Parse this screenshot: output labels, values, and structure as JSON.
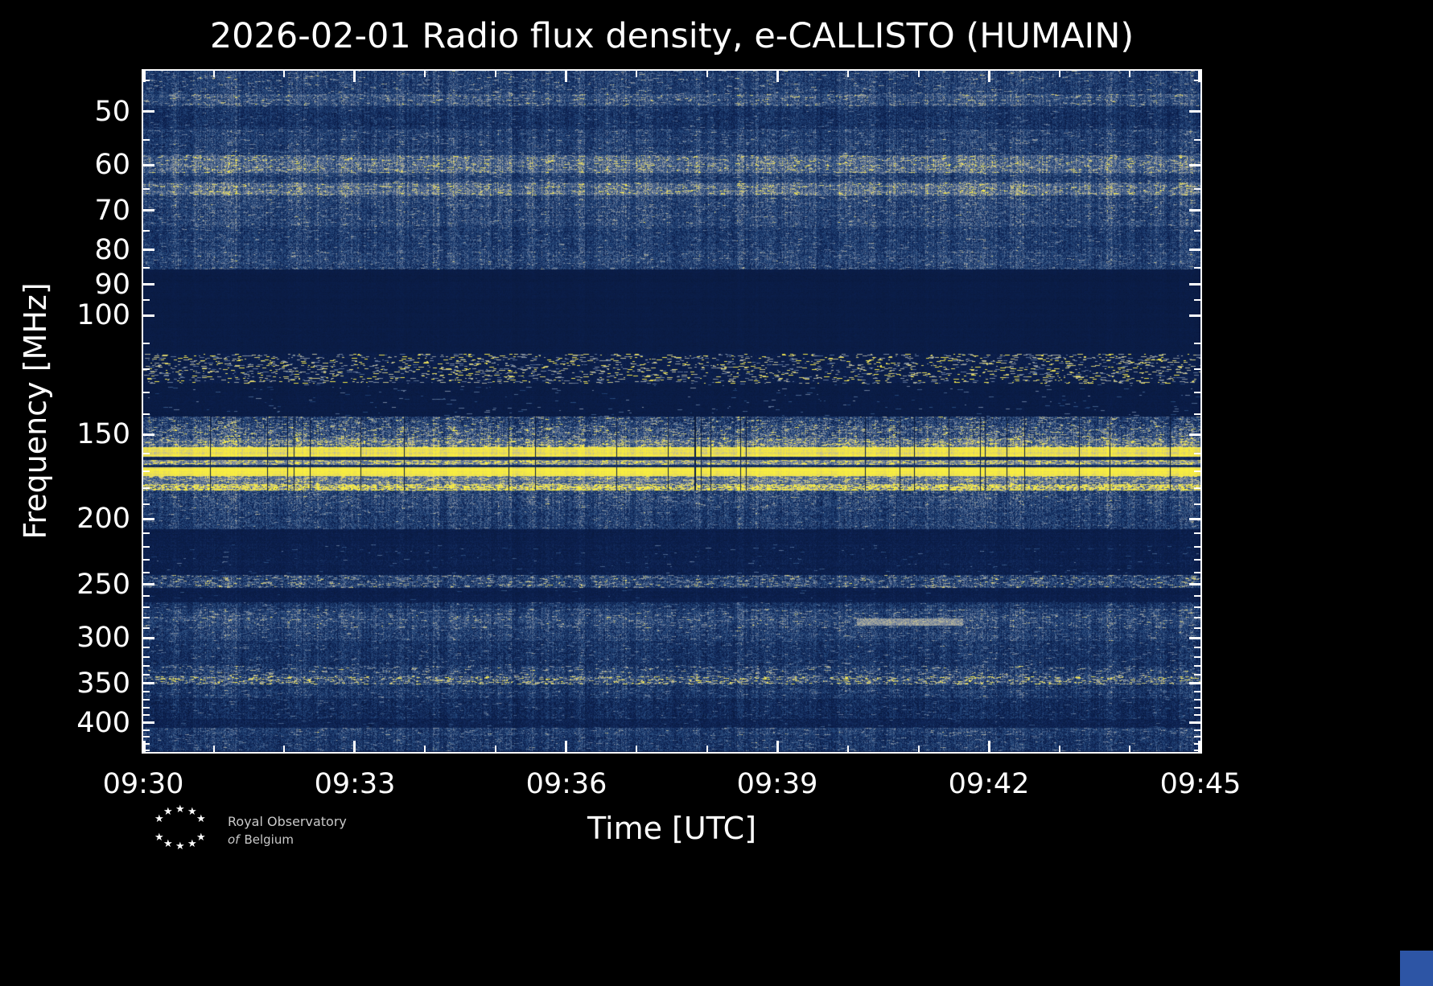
{
  "title": "2026-02-01 Radio flux density, e-CALLISTO (HUMAIN)",
  "x_axis": {
    "label": "Time [UTC]",
    "tick_labels": [
      "09:30",
      "09:33",
      "09:36",
      "09:39",
      "09:42",
      "09:45"
    ],
    "minutes_total": 15,
    "major_step_minutes": 3,
    "minor_step_minutes": 1
  },
  "y_axis": {
    "label": "Frequency [MHz]",
    "tick_values": [
      50,
      60,
      70,
      80,
      90,
      100,
      150,
      200,
      250,
      300,
      350,
      400
    ],
    "minor_tick_values": [
      45,
      55,
      65,
      75,
      85,
      95,
      110,
      120,
      130,
      140,
      160,
      170,
      180,
      190,
      210,
      220,
      230,
      240,
      260,
      270,
      280,
      290,
      310,
      320,
      330,
      340,
      360,
      370,
      380,
      390,
      410,
      420,
      430,
      440
    ],
    "scale": "log",
    "f_min_mhz": 43.5,
    "f_max_mhz": 442
  },
  "chart_data": {
    "type": "heatmap",
    "title": "2026-02-01 Radio flux density, e-CALLISTO (HUMAIN)",
    "xlabel": "Time [UTC]",
    "ylabel": "Frequency [MHz]",
    "x_range_utc": [
      "09:30",
      "09:45"
    ],
    "y_range_mhz": [
      43.5,
      442
    ],
    "y_scale": "log",
    "legend": "none",
    "grid": false,
    "description": "15-minute CALLISTO dynamic radio spectrum (HUMAIN station). Quiet background with persistent horizontal terrestrial RFI bands: bright saturated emission near 157-182 MHz, aircraft-band speckle near 115-126 MHz, quiet FM notch 86-114 MHz, noisy bands near 60-65, 145-155, 245-250, 280-300, 345 and 410 MHz, plus a short bright feature near 283 MHz around 09:40-09:41 UTC.",
    "colormap_stops": [
      [
        0.0,
        "#071531"
      ],
      [
        0.15,
        "#0c2050"
      ],
      [
        0.35,
        "#25497c"
      ],
      [
        0.55,
        "#6e7e9c"
      ],
      [
        0.72,
        "#b7b69e"
      ],
      [
        0.85,
        "#e9dc55"
      ],
      [
        1.0,
        "#f9ef3f"
      ]
    ],
    "bands": [
      {
        "f0": 43.5,
        "f1": 47.0,
        "mean": 0.3,
        "var": 0.16,
        "speck": 0.02,
        "boost": 0.25
      },
      {
        "f0": 47.0,
        "f1": 49.0,
        "mean": 0.38,
        "var": 0.18,
        "speck": 0.03,
        "boost": 0.25
      },
      {
        "f0": 49.0,
        "f1": 53.0,
        "mean": 0.24,
        "var": 0.13,
        "speck": 0.01,
        "boost": 0.2
      },
      {
        "f0": 53.0,
        "f1": 58.0,
        "mean": 0.3,
        "var": 0.16,
        "speck": 0.02,
        "boost": 0.2
      },
      {
        "f0": 58.0,
        "f1": 61.5,
        "mean": 0.46,
        "var": 0.2,
        "speck": 0.05,
        "boost": 0.25
      },
      {
        "f0": 61.5,
        "f1": 63.5,
        "mean": 0.32,
        "var": 0.16,
        "speck": 0.02,
        "boost": 0.2
      },
      {
        "f0": 63.5,
        "f1": 66.5,
        "mean": 0.47,
        "var": 0.2,
        "speck": 0.04,
        "boost": 0.25
      },
      {
        "f0": 66.5,
        "f1": 74.0,
        "mean": 0.33,
        "var": 0.18,
        "speck": 0.02,
        "boost": 0.2
      },
      {
        "f0": 74.0,
        "f1": 80.0,
        "mean": 0.28,
        "var": 0.15,
        "speck": 0.015,
        "boost": 0.2
      },
      {
        "f0": 80.0,
        "f1": 85.5,
        "mean": 0.31,
        "var": 0.17,
        "speck": 0.02,
        "boost": 0.2
      },
      {
        "f0": 85.5,
        "f1": 114.0,
        "mean": 0.1,
        "var": 0.025,
        "speck": 0.0,
        "boost": 0.0,
        "cw": 0.3
      },
      {
        "f0": 114.0,
        "f1": 126.0,
        "mean": 0.12,
        "var": 0.05,
        "speck": 0.045,
        "boost": 0.6,
        "cw": 0.4
      },
      {
        "f0": 126.0,
        "f1": 141.0,
        "mean": 0.1,
        "var": 0.03,
        "speck": 0.004,
        "boost": 0.35,
        "cw": 0.3
      },
      {
        "f0": 141.0,
        "f1": 146.0,
        "mean": 0.3,
        "var": 0.2,
        "speck": 0.05,
        "boost": 0.3,
        "drop": 1
      },
      {
        "f0": 146.0,
        "f1": 152.0,
        "mean": 0.36,
        "var": 0.22,
        "speck": 0.06,
        "boost": 0.3,
        "drop": 1
      },
      {
        "f0": 152.0,
        "f1": 156.5,
        "mean": 0.47,
        "var": 0.2,
        "speck": 0.08,
        "boost": 0.3,
        "drop": 1
      },
      {
        "f0": 156.5,
        "f1": 162.0,
        "mean": 0.93,
        "var": 0.07,
        "speck": 0.0,
        "boost": 0.0,
        "drop": 1,
        "cw": 0.35
      },
      {
        "f0": 162.0,
        "f1": 163.5,
        "mean": 0.18,
        "var": 0.06,
        "speck": 0.0,
        "boost": 0.0,
        "cw": 0.5
      },
      {
        "f0": 163.5,
        "f1": 166.5,
        "mean": 0.56,
        "var": 0.14,
        "speck": 0.1,
        "boost": 0.3,
        "drop": 1,
        "cw": 0.6
      },
      {
        "f0": 166.5,
        "f1": 167.8,
        "mean": 0.22,
        "var": 0.07,
        "speck": 0.0,
        "boost": 0.0,
        "cw": 0.5
      },
      {
        "f0": 167.8,
        "f1": 172.8,
        "mean": 0.95,
        "var": 0.06,
        "speck": 0.0,
        "boost": 0.0,
        "drop": 1,
        "cw": 0.3
      },
      {
        "f0": 172.8,
        "f1": 177.5,
        "mean": 0.5,
        "var": 0.16,
        "speck": 0.07,
        "boost": 0.25,
        "drop": 1,
        "cw": 0.7
      },
      {
        "f0": 177.5,
        "f1": 181.5,
        "mean": 0.55,
        "var": 0.22,
        "speck": 0.3,
        "boost": 0.4,
        "drop": 1,
        "cw": 0.8
      },
      {
        "f0": 181.5,
        "f1": 193.0,
        "mean": 0.33,
        "var": 0.19,
        "speck": 0.02,
        "boost": 0.2
      },
      {
        "f0": 193.0,
        "f1": 207.0,
        "mean": 0.29,
        "var": 0.17,
        "speck": 0.012,
        "boost": 0.2
      },
      {
        "f0": 207.0,
        "f1": 218.0,
        "mean": 0.13,
        "var": 0.05,
        "speck": 0.0,
        "boost": 0.0,
        "cw": 0.4
      },
      {
        "f0": 218.0,
        "f1": 242.0,
        "mean": 0.14,
        "var": 0.06,
        "speck": 0.004,
        "boost": 0.25,
        "cw": 0.5
      },
      {
        "f0": 242.0,
        "f1": 253.0,
        "mean": 0.3,
        "var": 0.19,
        "speck": 0.05,
        "boost": 0.3
      },
      {
        "f0": 253.0,
        "f1": 266.0,
        "mean": 0.13,
        "var": 0.05,
        "speck": 0.002,
        "boost": 0.2,
        "cw": 0.4
      },
      {
        "f0": 266.0,
        "f1": 272.0,
        "mean": 0.24,
        "var": 0.14,
        "speck": 0.015,
        "boost": 0.2
      },
      {
        "f0": 272.0,
        "f1": 278.0,
        "mean": 0.3,
        "var": 0.16,
        "speck": 0.03,
        "boost": 0.25
      },
      {
        "f0": 278.0,
        "f1": 290.0,
        "mean": 0.33,
        "var": 0.17,
        "speck": 0.03,
        "boost": 0.25
      },
      {
        "f0": 290.0,
        "f1": 303.0,
        "mean": 0.3,
        "var": 0.17,
        "speck": 0.02,
        "boost": 0.2
      },
      {
        "f0": 303.0,
        "f1": 330.0,
        "mean": 0.24,
        "var": 0.14,
        "speck": 0.015,
        "boost": 0.22
      },
      {
        "f0": 330.0,
        "f1": 342.0,
        "mean": 0.28,
        "var": 0.17,
        "speck": 0.035,
        "boost": 0.3
      },
      {
        "f0": 342.0,
        "f1": 352.0,
        "mean": 0.33,
        "var": 0.21,
        "speck": 0.09,
        "boost": 0.38
      },
      {
        "f0": 352.0,
        "f1": 368.0,
        "mean": 0.26,
        "var": 0.15,
        "speck": 0.02,
        "boost": 0.2
      },
      {
        "f0": 368.0,
        "f1": 396.0,
        "mean": 0.2,
        "var": 0.12,
        "speck": 0.01,
        "boost": 0.2
      },
      {
        "f0": 396.0,
        "f1": 408.0,
        "mean": 0.16,
        "var": 0.08,
        "speck": 0.005,
        "boost": 0.2,
        "cw": 0.5
      },
      {
        "f0": 408.0,
        "f1": 418.0,
        "mean": 0.3,
        "var": 0.16,
        "speck": 0.02,
        "boost": 0.22
      },
      {
        "f0": 418.0,
        "f1": 442.0,
        "mean": 0.26,
        "var": 0.15,
        "speck": 0.02,
        "boost": 0.2
      }
    ],
    "transients": [
      {
        "t0": 0.675,
        "t1": 0.775,
        "f0": 280.5,
        "f1": 288.0,
        "level": 0.62,
        "note": "short bright streak near 283 MHz around 09:40-09:41 UTC"
      }
    ]
  },
  "logo": {
    "star_glyph": "★",
    "line1": "Royal Observatory",
    "line2_of": "of",
    "line2_name": "Belgium"
  },
  "colors": {
    "background": "#000000",
    "frame": "#ffffff",
    "text": "#ffffff",
    "logo_text": "#c9c9c9",
    "bright_rfi": "#f9ef3f",
    "base_noise": "#1e3f70",
    "quiet_band": "#0a1b44",
    "corner_square": "#2d55a5"
  }
}
